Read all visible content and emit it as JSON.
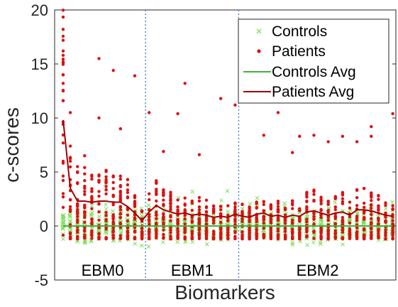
{
  "chart_data": {
    "type": "scatter",
    "xlabel": "Biomarkers",
    "ylabel": "c-scores",
    "ylim": [
      -5,
      20
    ],
    "yticks": [
      "-5",
      "0",
      "5",
      "10",
      "15",
      "20"
    ],
    "grid": false,
    "legend_position": "top-right",
    "groups": [
      {
        "label": "EBM0",
        "biomarker_range": [
          1,
          12
        ]
      },
      {
        "label": "EBM1",
        "biomarker_range": [
          13,
          25
        ]
      },
      {
        "label": "EBM2",
        "biomarker_range": [
          26,
          47
        ]
      }
    ],
    "group_dividers_after_biomarker": [
      12,
      25
    ],
    "series": [
      {
        "name": "Controls",
        "marker": "x",
        "color": "#7fe05a"
      },
      {
        "name": "Patients",
        "marker": "dot",
        "color": "#dd1111"
      },
      {
        "name": "Controls Avg",
        "marker": "line",
        "color": "#3cb43c",
        "values": [
          0,
          0,
          0,
          0,
          0,
          0,
          0,
          0,
          0,
          0,
          0,
          0,
          0,
          0,
          0,
          0,
          0,
          0,
          0,
          0,
          0,
          0,
          0,
          0,
          0,
          0,
          0,
          0,
          0,
          0,
          0,
          0,
          0,
          0,
          0,
          0,
          0,
          0,
          0,
          0,
          0,
          0,
          0,
          0,
          0,
          0,
          0
        ]
      },
      {
        "name": "Patients Avg",
        "marker": "line",
        "color": "#a30000",
        "values": [
          9.8,
          3.5,
          2.3,
          2.3,
          2.2,
          2.3,
          2.3,
          2.2,
          2.2,
          1.8,
          1.2,
          0.5,
          1.3,
          1.9,
          1.5,
          1.3,
          1.1,
          1.2,
          1.0,
          1.1,
          1.0,
          0.8,
          0.9,
          0.8,
          1.1,
          0.9,
          0.8,
          1.1,
          1.2,
          0.9,
          1.0,
          0.8,
          1.0,
          0.9,
          1.3,
          1.4,
          1.2,
          1.0,
          1.2,
          1.3,
          1.0,
          1.5,
          1.5,
          1.4,
          1.2,
          1.0,
          0.9
        ]
      }
    ],
    "outlier_points": [
      {
        "x": 1,
        "y": 18.2
      },
      {
        "x": 1,
        "y": 16.2
      },
      {
        "x": 1,
        "y": 15.8
      },
      {
        "x": 1,
        "y": 15.2
      },
      {
        "x": 1,
        "y": 14.0
      },
      {
        "x": 1,
        "y": 13.2
      },
      {
        "x": 1,
        "y": 12.5
      },
      {
        "x": 1,
        "y": 11.6
      },
      {
        "x": 2,
        "y": 10.5
      },
      {
        "x": 4,
        "y": 6.5
      },
      {
        "x": 6,
        "y": 15.5
      },
      {
        "x": 6,
        "y": 10.0
      },
      {
        "x": 8,
        "y": 14.4
      },
      {
        "x": 9,
        "y": 9.0
      },
      {
        "x": 11,
        "y": 13.9
      },
      {
        "x": 13,
        "y": 10.5
      },
      {
        "x": 17,
        "y": 10.4
      },
      {
        "x": 18,
        "y": 13.2
      },
      {
        "x": 23,
        "y": 11.8
      },
      {
        "x": 25,
        "y": 11.2
      },
      {
        "x": 26,
        "y": 12.5
      },
      {
        "x": 27,
        "y": 14.2
      },
      {
        "x": 29,
        "y": 8.4
      },
      {
        "x": 31,
        "y": 10.5
      },
      {
        "x": 34,
        "y": 8.3
      },
      {
        "x": 36,
        "y": 8.4
      },
      {
        "x": 38,
        "y": 7.8
      },
      {
        "x": 40,
        "y": 8.3
      },
      {
        "x": 42,
        "y": 7.8
      },
      {
        "x": 44,
        "y": 9.2
      },
      {
        "x": 44,
        "y": 8.3
      },
      {
        "x": 47,
        "y": 10.4
      },
      {
        "x": 33,
        "y": 6.8
      },
      {
        "x": 20,
        "y": 6.6
      },
      {
        "x": 15,
        "y": 6.9
      }
    ]
  }
}
